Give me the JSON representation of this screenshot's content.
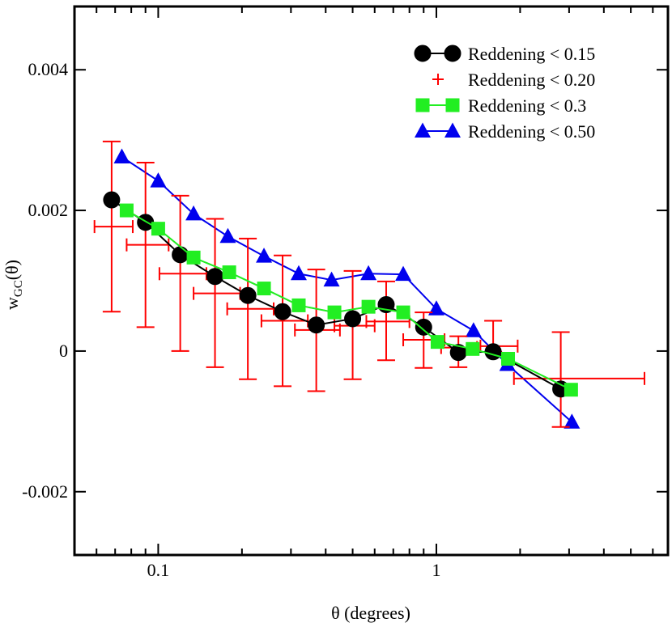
{
  "chart_data": {
    "type": "line",
    "xscale": "log",
    "xlabel": "θ (degrees)",
    "ylabel_main": "w",
    "ylabel_sub": "GC",
    "ylabel_suffix": "(θ)",
    "xlim": [
      0.05,
      6.8
    ],
    "ylim": [
      -0.0029,
      0.0049
    ],
    "xticks": [
      0.1,
      1
    ],
    "xtick_labels": [
      "0.1",
      "1"
    ],
    "yticks": [
      -0.002,
      0,
      0.002,
      0.004
    ],
    "ytick_labels": [
      "-0.002",
      "0",
      "0.002",
      "0.004"
    ],
    "legend_position": "top-right",
    "series": [
      {
        "name": "Reddening < 0.15",
        "marker": "circle",
        "color": "#000000",
        "x": [
          0.068,
          0.09,
          0.12,
          0.16,
          0.21,
          0.28,
          0.37,
          0.5,
          0.66,
          0.9,
          1.2,
          1.6,
          2.8
        ],
        "y": [
          0.00215,
          0.00183,
          0.00137,
          0.00106,
          0.00079,
          0.00056,
          0.00037,
          0.00046,
          0.00066,
          0.00034,
          -2e-05,
          -1e-05,
          -0.00054
        ]
      },
      {
        "name": "Reddening < 0.20",
        "marker": "errorbar",
        "color": "#ff0000",
        "x": [
          0.068,
          0.09,
          0.12,
          0.16,
          0.21,
          0.28,
          0.37,
          0.5,
          0.66,
          0.9,
          1.2,
          1.6,
          2.8
        ],
        "y": [
          0.00177,
          0.00151,
          0.0011,
          0.00082,
          0.0006,
          0.00043,
          0.0003,
          0.00036,
          0.00042,
          0.00016,
          5e-05,
          7e-05,
          -0.00039
        ],
        "yerr_low": [
          0.00056,
          0.00034,
          0.0,
          -0.00023,
          -0.0004,
          -0.0005,
          -0.00057,
          -0.0004,
          -0.00013,
          -0.00024,
          -0.00023,
          -1e-05,
          -0.00108
        ],
        "yerr_high": [
          0.00298,
          0.00268,
          0.00221,
          0.00188,
          0.0016,
          0.00136,
          0.00116,
          0.00114,
          0.00099,
          0.00055,
          0.00021,
          0.00043,
          0.00027
        ],
        "xerr_low": [
          0.059,
          0.077,
          0.101,
          0.134,
          0.177,
          0.235,
          0.31,
          0.43,
          0.56,
          0.76,
          1.04,
          1.44,
          1.9
        ],
        "xerr_high": [
          0.081,
          0.109,
          0.149,
          0.197,
          0.26,
          0.345,
          0.45,
          0.6,
          0.8,
          1.07,
          1.4,
          1.96,
          5.6
        ]
      },
      {
        "name": "Reddening < 0.3",
        "marker": "square",
        "color": "#22ee22",
        "x": [
          0.077,
          0.1,
          0.134,
          0.18,
          0.24,
          0.32,
          0.43,
          0.57,
          0.76,
          1.01,
          1.35,
          1.81,
          3.05
        ],
        "y": [
          0.002,
          0.00174,
          0.00133,
          0.00112,
          0.00089,
          0.00065,
          0.00055,
          0.00063,
          0.00055,
          0.00013,
          3e-05,
          -0.00011,
          -0.00055
        ]
      },
      {
        "name": "Reddening < 0.50",
        "marker": "triangle",
        "color": "#0000ee",
        "x": [
          0.074,
          0.1,
          0.134,
          0.178,
          0.24,
          0.32,
          0.42,
          0.57,
          0.76,
          1.0,
          1.36,
          1.8,
          3.07
        ],
        "y": [
          0.00276,
          0.00242,
          0.00195,
          0.00163,
          0.00135,
          0.0011,
          0.00101,
          0.0011,
          0.00109,
          0.0006,
          0.00029,
          -0.00019,
          -0.00101
        ]
      }
    ]
  }
}
